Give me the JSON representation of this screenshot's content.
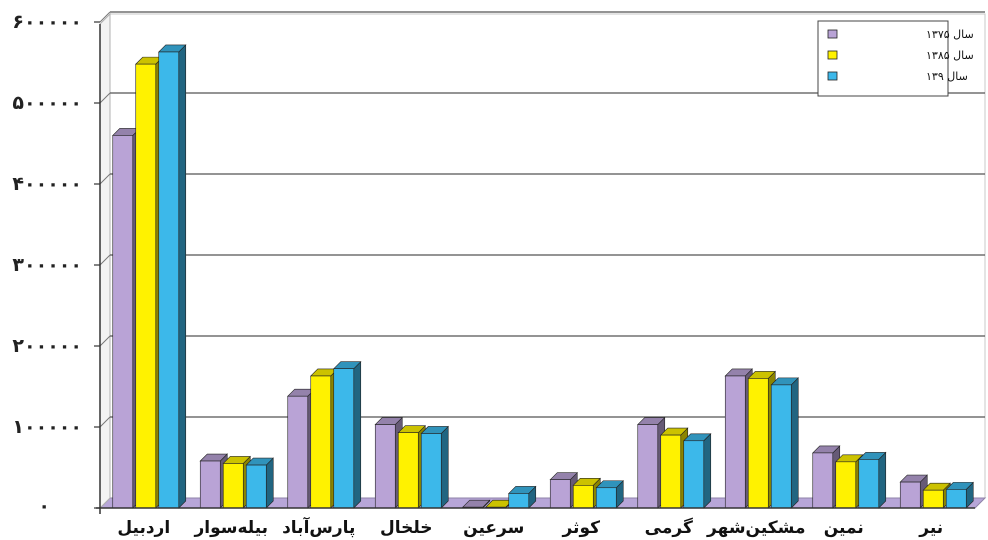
{
  "chart_data": {
    "type": "bar",
    "categories": [
      "اردبیل",
      "بیله‌سوار",
      "پارس‌آباد",
      "خلخال",
      "سرعین",
      "کوثر",
      "گرمی",
      "مشکین‌شهر",
      "نمین",
      "نیر"
    ],
    "series": [
      {
        "name": "سال ۱۳۷۵",
        "color": "#b9a3d6",
        "values": [
          460000,
          58000,
          138000,
          103000,
          1000,
          35000,
          103000,
          163000,
          68000,
          32000
        ]
      },
      {
        "name": "سال ۱۳۸۵",
        "color": "#fff200",
        "values": [
          548000,
          55000,
          163000,
          93000,
          1000,
          28000,
          90000,
          160000,
          57000,
          22000
        ]
      },
      {
        "name": "سال ۱۳۹",
        "color": "#3cb8ea",
        "values": [
          563000,
          53000,
          172000,
          92000,
          18000,
          25000,
          83000,
          152000,
          60000,
          23000
        ]
      }
    ],
    "ylim": [
      0,
      600000
    ],
    "yticks": [
      {
        "value": 0,
        "label": "۰"
      },
      {
        "value": 100000,
        "label": "۱۰۰۰۰۰"
      },
      {
        "value": 200000,
        "label": "۲۰۰۰۰۰"
      },
      {
        "value": 300000,
        "label": "۳۰۰۰۰۰"
      },
      {
        "value": 400000,
        "label": "۴۰۰۰۰۰"
      },
      {
        "value": 500000,
        "label": "۵۰۰۰۰۰"
      },
      {
        "value": 600000,
        "label": "۶۰۰۰۰۰"
      }
    ],
    "grid": true,
    "legend_position": "top-right",
    "title": "",
    "xlabel": "",
    "ylabel": ""
  }
}
